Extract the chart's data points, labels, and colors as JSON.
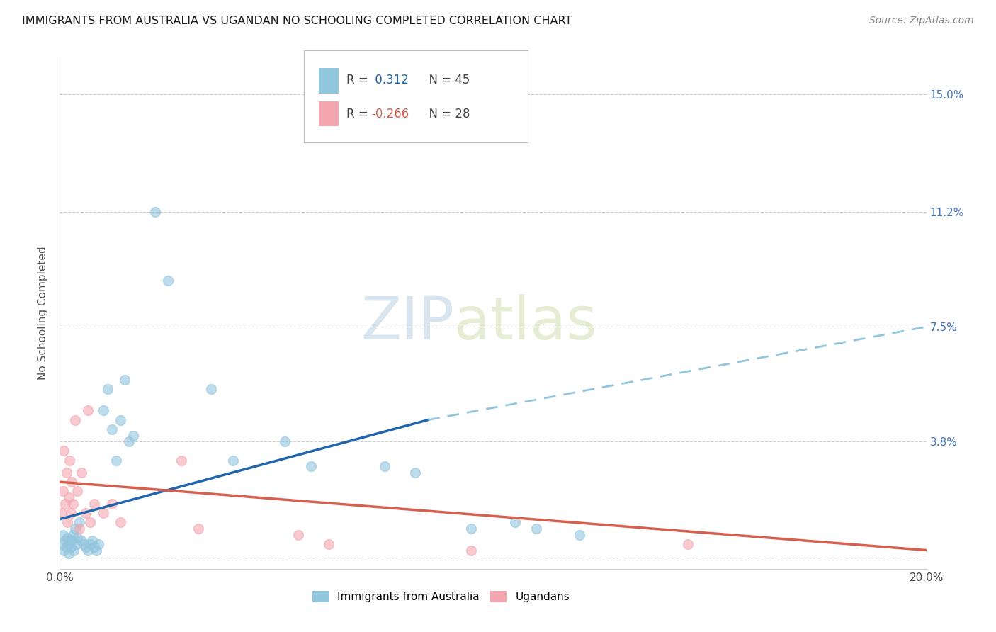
{
  "title": "IMMIGRANTS FROM AUSTRALIA VS UGANDAN NO SCHOOLING COMPLETED CORRELATION CHART",
  "source": "Source: ZipAtlas.com",
  "ylabel_label": "No Schooling Completed",
  "ytick_vals": [
    0.0,
    3.8,
    7.5,
    11.2,
    15.0
  ],
  "ytick_labels": [
    "",
    "3.8%",
    "7.5%",
    "11.2%",
    "15.0%"
  ],
  "xlim": [
    0.0,
    20.0
  ],
  "ylim": [
    -0.3,
    16.2
  ],
  "blue_color": "#92c5de",
  "pink_color": "#f4a6b0",
  "trend_blue_solid_color": "#2166ac",
  "trend_blue_dash_color": "#92c5de",
  "trend_pink_color": "#d6604d",
  "watermark_zip": "ZIP",
  "watermark_atlas": "atlas",
  "legend_blue_text_r": "R = ",
  "legend_blue_val": " 0.312",
  "legend_blue_n": "N = 45",
  "legend_pink_text_r": "R = ",
  "legend_pink_val": "-0.266",
  "legend_pink_n": "N = 28",
  "australia_points": [
    [
      0.05,
      0.5
    ],
    [
      0.08,
      0.8
    ],
    [
      0.1,
      0.3
    ],
    [
      0.12,
      0.6
    ],
    [
      0.15,
      0.4
    ],
    [
      0.18,
      0.7
    ],
    [
      0.2,
      0.2
    ],
    [
      0.22,
      0.5
    ],
    [
      0.25,
      0.4
    ],
    [
      0.28,
      0.6
    ],
    [
      0.3,
      0.8
    ],
    [
      0.32,
      0.3
    ],
    [
      0.35,
      1.0
    ],
    [
      0.38,
      0.5
    ],
    [
      0.4,
      0.7
    ],
    [
      0.45,
      1.2
    ],
    [
      0.5,
      0.6
    ],
    [
      0.55,
      0.5
    ],
    [
      0.6,
      0.4
    ],
    [
      0.65,
      0.3
    ],
    [
      0.7,
      0.5
    ],
    [
      0.75,
      0.6
    ],
    [
      0.8,
      0.4
    ],
    [
      0.85,
      0.3
    ],
    [
      0.9,
      0.5
    ],
    [
      1.0,
      4.8
    ],
    [
      1.1,
      5.5
    ],
    [
      1.2,
      4.2
    ],
    [
      1.3,
      3.2
    ],
    [
      1.4,
      4.5
    ],
    [
      1.5,
      5.8
    ],
    [
      1.6,
      3.8
    ],
    [
      1.7,
      4.0
    ],
    [
      2.2,
      11.2
    ],
    [
      2.5,
      9.0
    ],
    [
      3.5,
      5.5
    ],
    [
      4.0,
      3.2
    ],
    [
      5.2,
      3.8
    ],
    [
      5.8,
      3.0
    ],
    [
      7.5,
      3.0
    ],
    [
      8.2,
      2.8
    ],
    [
      9.5,
      1.0
    ],
    [
      10.5,
      1.2
    ],
    [
      11.0,
      1.0
    ],
    [
      12.0,
      0.8
    ]
  ],
  "uganda_points": [
    [
      0.05,
      1.5
    ],
    [
      0.08,
      2.2
    ],
    [
      0.1,
      3.5
    ],
    [
      0.12,
      1.8
    ],
    [
      0.15,
      2.8
    ],
    [
      0.18,
      1.2
    ],
    [
      0.2,
      2.0
    ],
    [
      0.22,
      3.2
    ],
    [
      0.25,
      1.5
    ],
    [
      0.28,
      2.5
    ],
    [
      0.3,
      1.8
    ],
    [
      0.35,
      4.5
    ],
    [
      0.4,
      2.2
    ],
    [
      0.45,
      1.0
    ],
    [
      0.5,
      2.8
    ],
    [
      0.6,
      1.5
    ],
    [
      0.65,
      4.8
    ],
    [
      0.7,
      1.2
    ],
    [
      0.8,
      1.8
    ],
    [
      1.0,
      1.5
    ],
    [
      1.2,
      1.8
    ],
    [
      1.4,
      1.2
    ],
    [
      2.8,
      3.2
    ],
    [
      3.2,
      1.0
    ],
    [
      5.5,
      0.8
    ],
    [
      6.2,
      0.5
    ],
    [
      9.5,
      0.3
    ],
    [
      14.5,
      0.5
    ]
  ],
  "trend_blue_solid_end": 8.5,
  "trend_blue_xstart": 0.0,
  "trend_blue_ystart": 1.3,
  "trend_blue_yend_solid": 4.5,
  "trend_blue_yend_dash": 7.5,
  "trend_pink_xstart": 0.0,
  "trend_pink_ystart": 2.5,
  "trend_pink_yend": 0.3
}
